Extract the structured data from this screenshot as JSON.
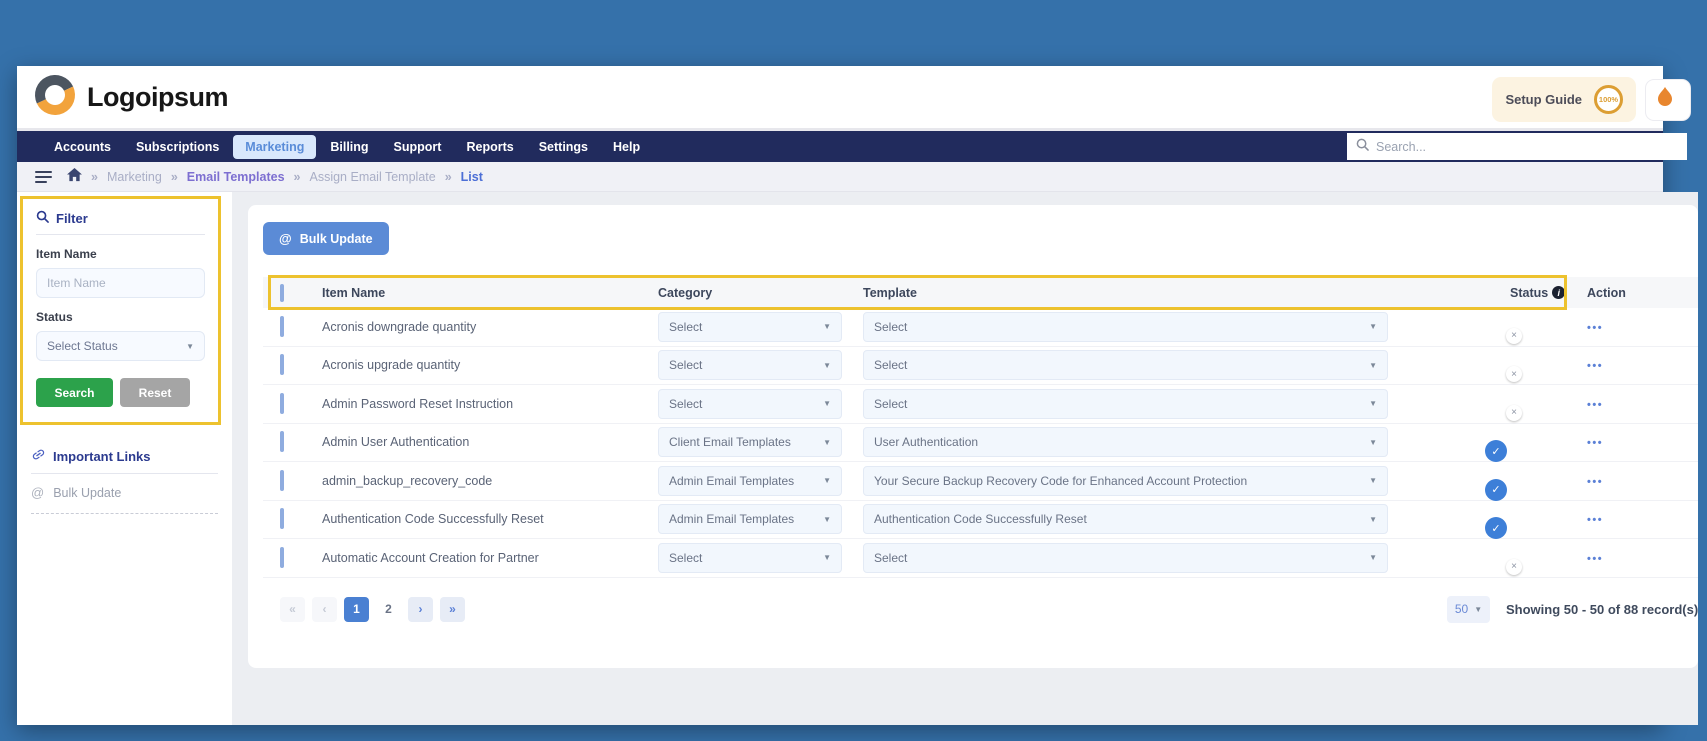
{
  "header": {
    "brand": "Logoipsum",
    "setup_guide_label": "Setup Guide",
    "setup_guide_progress": "100%"
  },
  "nav": {
    "tabs": [
      {
        "label": "Accounts",
        "active": false
      },
      {
        "label": "Subscriptions",
        "active": false
      },
      {
        "label": "Marketing",
        "active": true
      },
      {
        "label": "Billing",
        "active": false
      },
      {
        "label": "Support",
        "active": false
      },
      {
        "label": "Reports",
        "active": false
      },
      {
        "label": "Settings",
        "active": false
      },
      {
        "label": "Help",
        "active": false
      }
    ],
    "search_placeholder": "Search..."
  },
  "breadcrumb": {
    "separator": "»",
    "items": [
      {
        "label": "Marketing",
        "emphasis": "muted"
      },
      {
        "label": "Email Templates",
        "emphasis": "purple"
      },
      {
        "label": "Assign Email Template",
        "emphasis": "muted"
      },
      {
        "label": "List",
        "emphasis": "blue"
      }
    ]
  },
  "sidebar": {
    "filter": {
      "title": "Filter",
      "item_name_label": "Item Name",
      "item_name_placeholder": "Item Name",
      "status_label": "Status",
      "status_value": "Select Status",
      "search_button": "Search",
      "reset_button": "Reset"
    },
    "links": {
      "title": "Important Links",
      "items": [
        "Bulk Update"
      ]
    }
  },
  "main": {
    "bulk_update_button": "Bulk Update",
    "table": {
      "headers": {
        "item_name": "Item Name",
        "category": "Category",
        "template": "Template",
        "status": "Status",
        "action": "Action"
      },
      "rows": [
        {
          "item_name": "Acronis downgrade quantity",
          "category": "Select",
          "template": "Select",
          "status": false
        },
        {
          "item_name": "Acronis upgrade quantity",
          "category": "Select",
          "template": "Select",
          "status": false
        },
        {
          "item_name": "Admin Password Reset Instruction",
          "category": "Select",
          "template": "Select",
          "status": false
        },
        {
          "item_name": "Admin User Authentication",
          "category": "Client Email Templates",
          "template": "User Authentication",
          "status": true
        },
        {
          "item_name": "admin_backup_recovery_code",
          "category": "Admin Email Templates",
          "template": "Your Secure Backup Recovery Code for Enhanced Account Protection",
          "status": true
        },
        {
          "item_name": "Authentication Code Successfully Reset",
          "category": "Admin Email Templates",
          "template": "Authentication Code Successfully Reset",
          "status": true
        },
        {
          "item_name": "Automatic Account Creation for Partner",
          "category": "Select",
          "template": "Select",
          "status": false
        }
      ]
    },
    "pagination": {
      "pages": [
        "1",
        "2"
      ],
      "active_page": "1",
      "page_size": "50",
      "summary": "Showing 50 - 50 of 88 record(s)"
    }
  },
  "icons": {
    "dropdown": "▼",
    "at": "@",
    "cross": "×",
    "check": "✓",
    "info": "i",
    "dots": "•••",
    "first": "«",
    "prev": "‹",
    "next": "›",
    "last": "»"
  },
  "colors": {
    "frame": "#3571AA",
    "navy": "#212B5D",
    "annotation_yellow": "#EDC22E",
    "accent_blue": "#5B8BD6",
    "toggle_on": "#3D7FD8",
    "search_green": "#2CA24B",
    "reset_gray": "#A5A5A5",
    "setup_orange": "#DC9E33"
  }
}
